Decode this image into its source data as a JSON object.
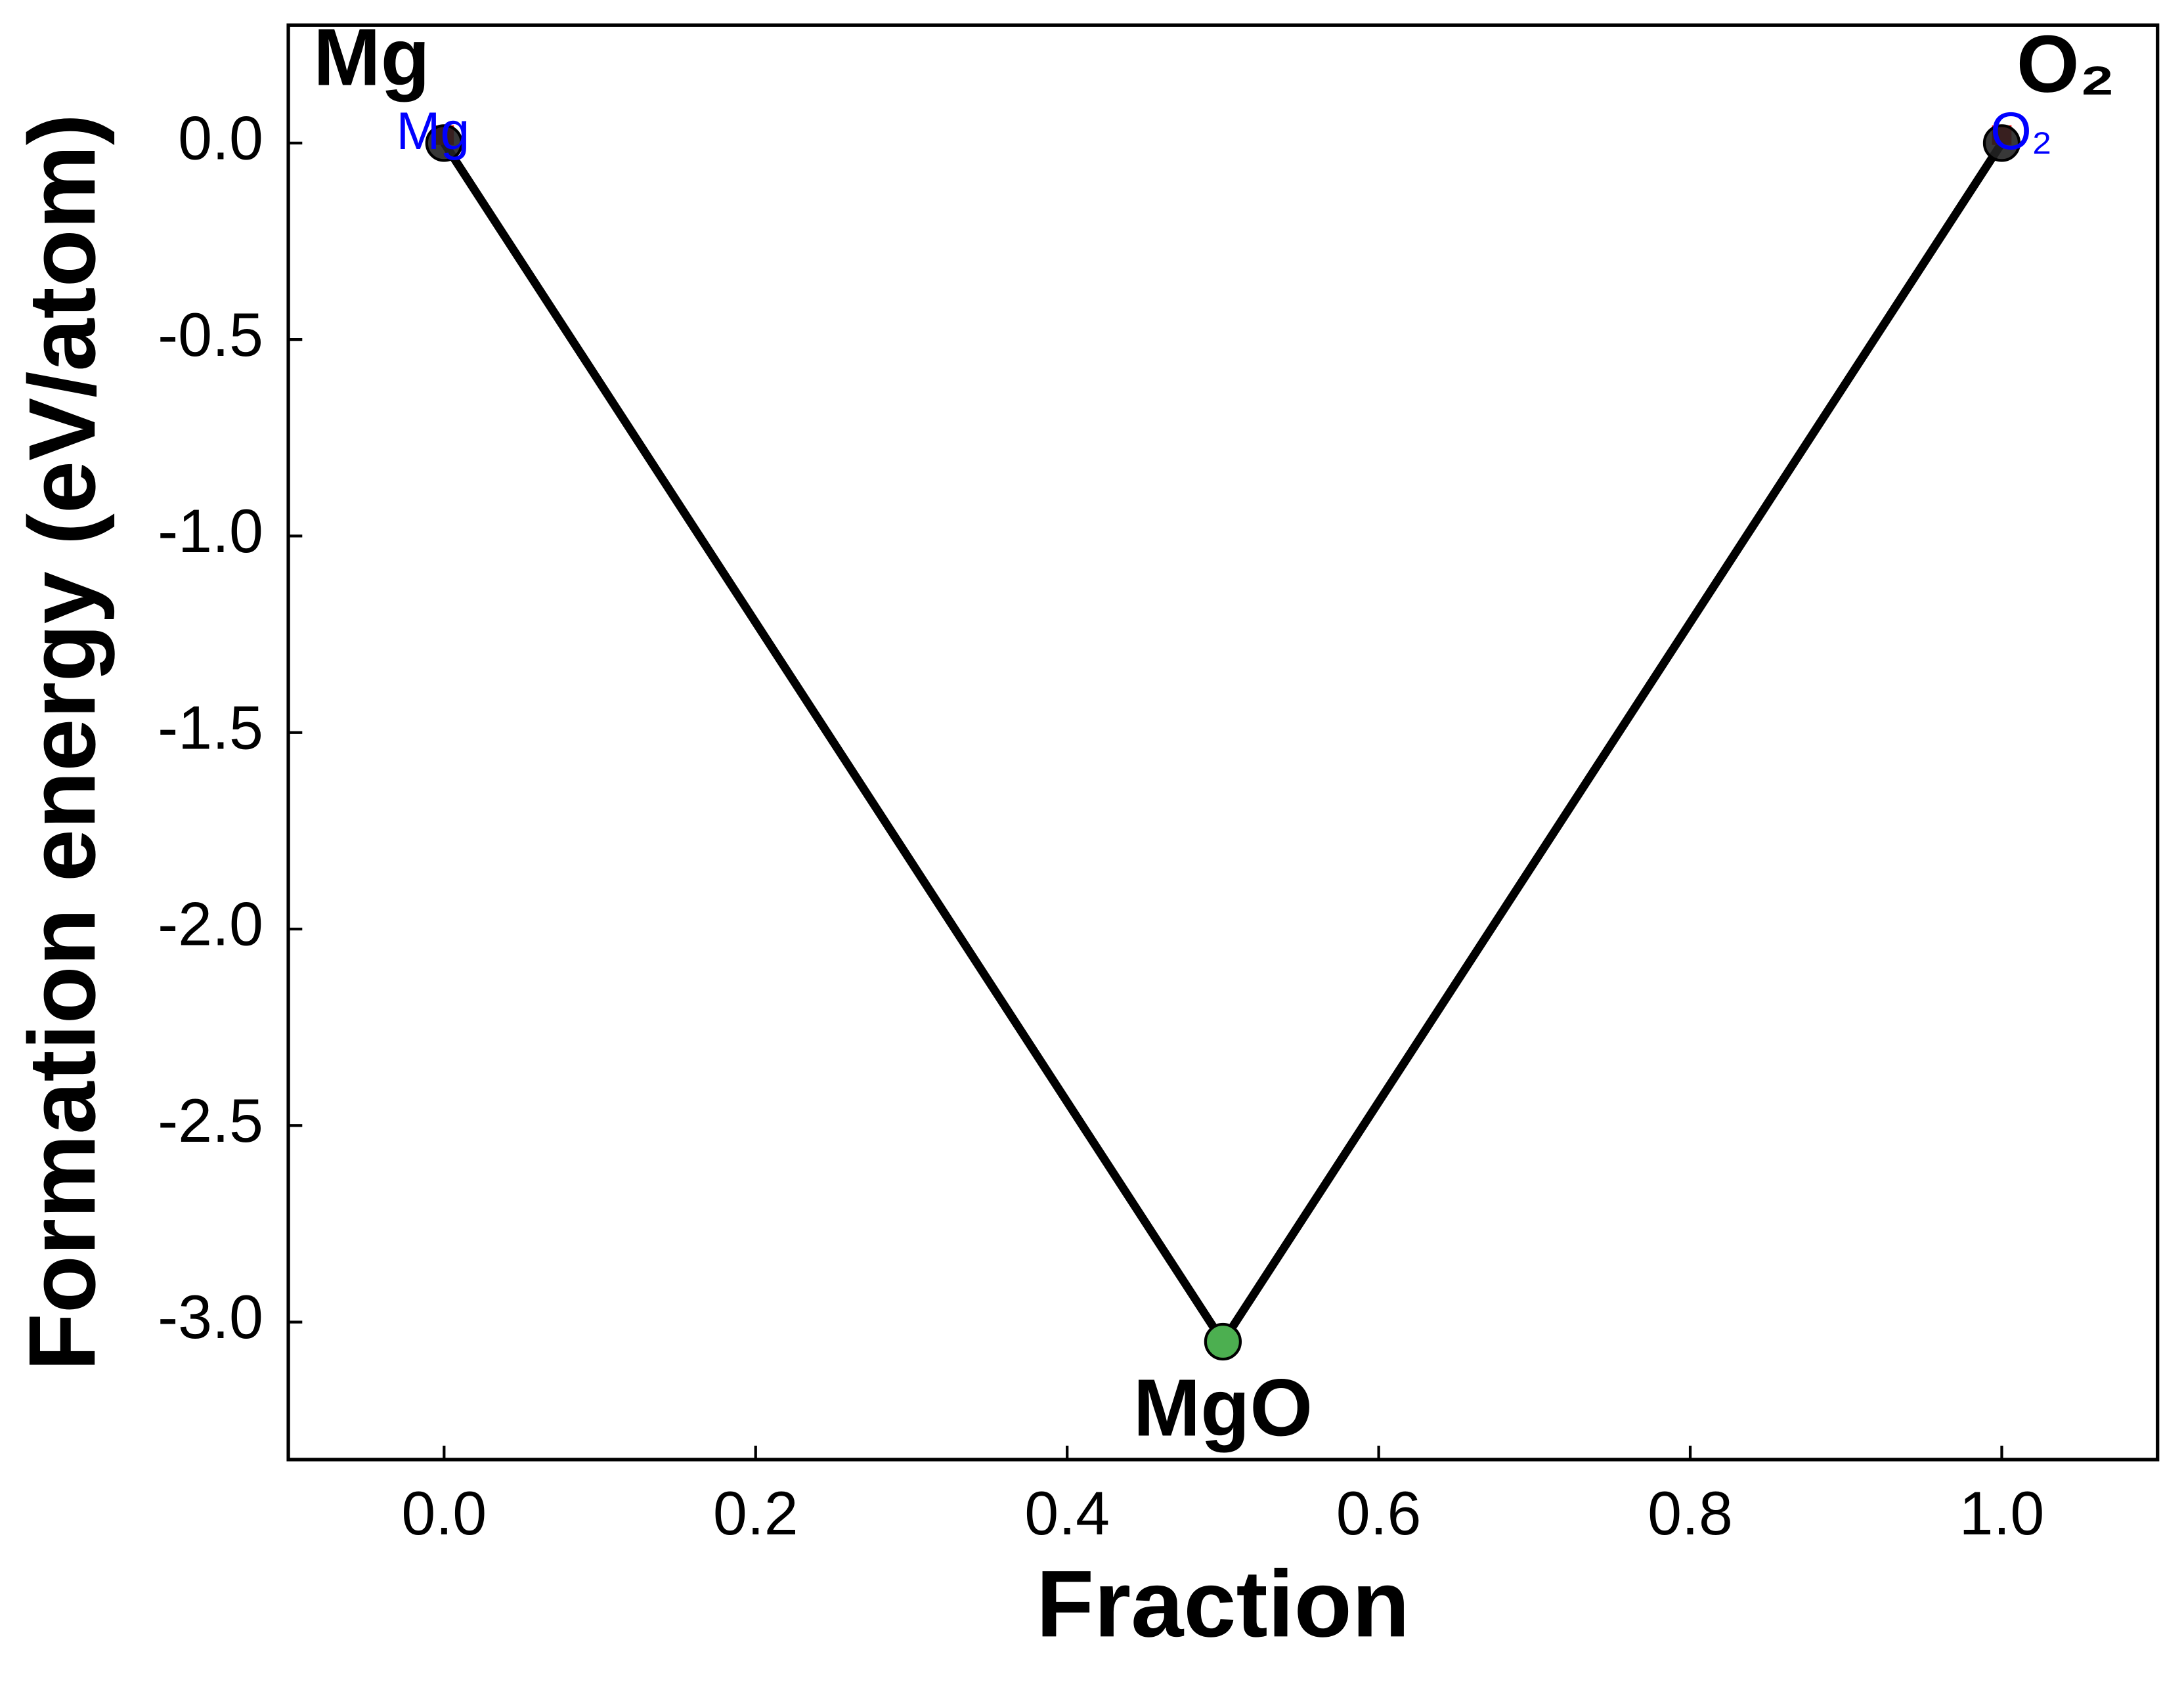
{
  "chart_data": {
    "type": "line",
    "x_label": "Fraction",
    "y_label": "Formation energy (eV/atom)",
    "xlim": [
      -0.1,
      1.1
    ],
    "ylim": [
      -3.35,
      0.3
    ],
    "xticks": [
      {
        "value": 0,
        "label": "0.0"
      },
      0.2,
      0.4,
      0.6,
      0.8,
      {
        "value": 1,
        "label": "1.0"
      }
    ],
    "yticks": [
      {
        "value": 0,
        "label": "0.0"
      },
      -0.5,
      {
        "value": -1,
        "label": "-1.0"
      },
      -1.5,
      {
        "value": -2,
        "label": "-2.0"
      },
      -2.5,
      {
        "value": -3,
        "label": "-3.0"
      }
    ],
    "series": [
      {
        "color": "#000000",
        "x": [
          0,
          0.5,
          1
        ],
        "values": [
          0,
          -3.05,
          0
        ],
        "marker_colors": [
          "#222222",
          "#4caf50",
          "#222222"
        ],
        "point_labels": [
          "Mg",
          "MgO",
          "O₂"
        ]
      },
      {
        "color": "#ff0000",
        "x": [
          0,
          1
        ],
        "values": [
          0.02,
          0.02
        ],
        "point_labels": [
          "Mg",
          "O₂"
        ],
        "label_color": "#0000ff"
      }
    ]
  }
}
